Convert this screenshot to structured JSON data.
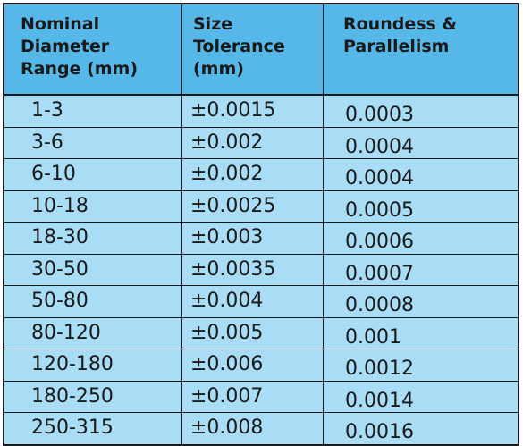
{
  "table": {
    "headers": [
      "Nominal\nDiameter\nRange (mm)",
      "Size\nTolerance\n(mm)",
      "Roundess &\nParallelism"
    ],
    "rows": [
      [
        "1-3",
        "±0.0015",
        "0.0003"
      ],
      [
        "3-6",
        "±0.002",
        "0.0004"
      ],
      [
        "6-10",
        "±0.002",
        "0.0004"
      ],
      [
        "10-18",
        "±0.0025",
        "0.0005"
      ],
      [
        "18-30",
        "±0.003",
        "0.0006"
      ],
      [
        "30-50",
        "±0.0035",
        "0.0007"
      ],
      [
        "50-80",
        "±0.004",
        "0.0008"
      ],
      [
        "80-120",
        "±0.005",
        "0.001"
      ],
      [
        "120-180",
        "±0.006",
        "0.0012"
      ],
      [
        "180-250",
        "±0.007",
        "0.0014"
      ],
      [
        "250-315",
        "±0.008",
        "0.0016"
      ]
    ]
  },
  "colors": {
    "header_bg": "#55b8e8",
    "body_bg": "#a9dcf5",
    "border": "#1a1a1a"
  }
}
